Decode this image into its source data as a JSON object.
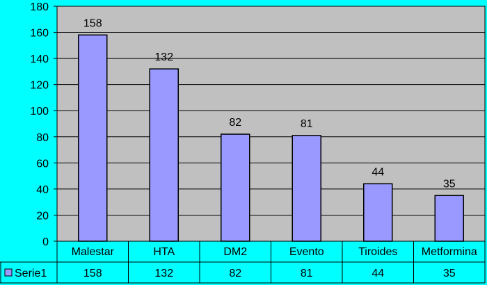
{
  "chart_data": {
    "type": "bar",
    "categories": [
      "Malestar",
      "HTA",
      "DM2",
      "Evento",
      "Tiroides",
      "Metformina"
    ],
    "series": [
      {
        "name": "Serie1",
        "values": [
          158,
          132,
          82,
          81,
          44,
          35
        ]
      }
    ],
    "title": "",
    "xlabel": "",
    "ylabel": "",
    "ylim": [
      0,
      180
    ],
    "yticks": [
      "0",
      "20",
      "40",
      "60",
      "80",
      "100",
      "120",
      "140",
      "160",
      "180"
    ],
    "data_labels": [
      "158",
      "132",
      "82",
      "81",
      "44",
      "35"
    ],
    "grid": true,
    "legend": "bottom-left data table",
    "colors": {
      "background": "#00FFFF",
      "plot_area": "#C0C0C0",
      "bar_fill": "#9999FF",
      "bar_stroke": "#000000",
      "grid": "#000000"
    }
  }
}
